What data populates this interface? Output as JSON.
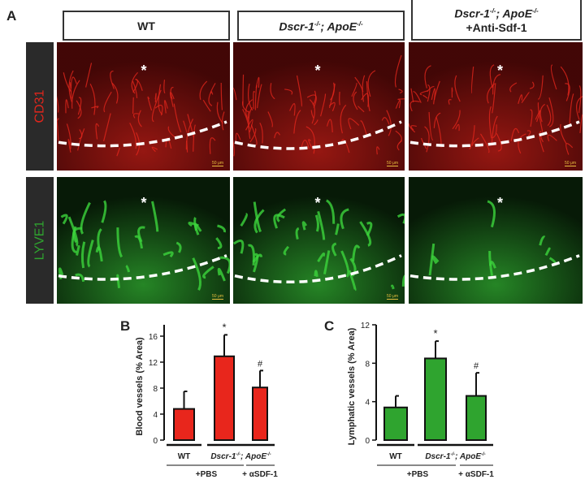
{
  "panel_labels": {
    "a": "A",
    "b": "B",
    "c": "C"
  },
  "column_headers": [
    {
      "line1": "WT"
    },
    {
      "gene1": "Dscr-1",
      "sup1": "-/-",
      "sep": "; ",
      "gene2": "ApoE",
      "sup2": "-/-"
    },
    {
      "gene1": "Dscr-1",
      "sup1": "-/-",
      "sep": "; ",
      "gene2": "ApoE",
      "sup2": "-/-",
      "line2": "+Anti-Sdf-1"
    }
  ],
  "row_labels": [
    {
      "text": "CD31",
      "color": "#e0261c"
    },
    {
      "text": "LYVE1",
      "color": "#2fa42f"
    }
  ],
  "image_annotations": {
    "asterisk": "*",
    "scale_bar": "50 μm"
  },
  "chart_data": [
    {
      "type": "bar",
      "panel": "B",
      "ylabel": "Blood vessels (% Area)",
      "ylim": [
        0,
        16
      ],
      "yticks": [
        "0",
        "4",
        "8",
        "12",
        "16"
      ],
      "categories": [
        "WT",
        "Dscr-1-/-; ApoE-/- (+PBS)",
        "Dscr-1-/-; ApoE-/- (+αSDF-1)"
      ],
      "values": [
        4.8,
        12.9,
        8.1
      ],
      "errors": [
        2.7,
        3.3,
        2.6
      ],
      "annotations": [
        "",
        "*",
        "#"
      ],
      "color": "#e8261c",
      "group_labels": {
        "wt": "WT",
        "gene1": "Dscr-1",
        "sup1": "-/-",
        "sep": "; ",
        "gene2": "ApoE",
        "sup2": "-/-",
        "pbs": "+PBS",
        "sdf": "+ αSDF-1"
      }
    },
    {
      "type": "bar",
      "panel": "C",
      "ylabel": "Lymphatic vessels (% Area)",
      "ylim": [
        0,
        12
      ],
      "yticks": [
        "0",
        "4",
        "8",
        "12"
      ],
      "categories": [
        "WT",
        "Dscr-1-/-; ApoE-/- (+PBS)",
        "Dscr-1-/-; ApoE-/- (+αSDF-1)"
      ],
      "values": [
        3.4,
        8.5,
        4.6
      ],
      "errors": [
        1.2,
        1.8,
        2.4
      ],
      "annotations": [
        "",
        "*",
        "#"
      ],
      "color": "#2fa42f",
      "group_labels": {
        "wt": "WT",
        "gene1": "Dscr-1",
        "sup1": "-/-",
        "sep": "; ",
        "gene2": "ApoE",
        "sup2": "-/-",
        "pbs": "+PBS",
        "sdf": "+ αSDF-1"
      }
    }
  ]
}
